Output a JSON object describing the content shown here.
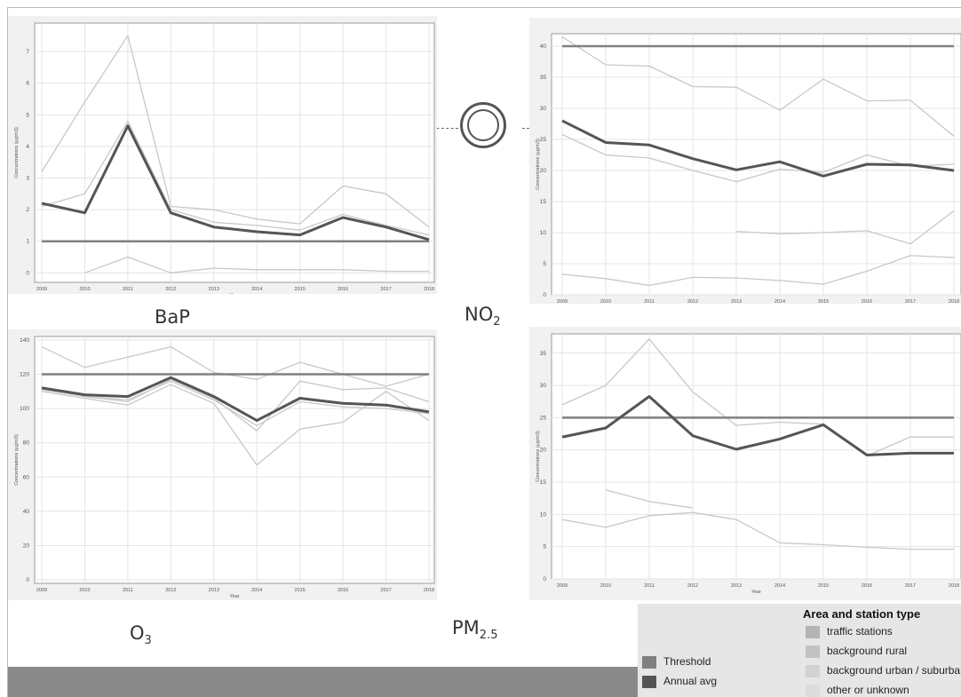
{
  "labels": {
    "bap": "BaP",
    "no2_base": "NO",
    "no2_sub": "2",
    "o3_base": "O",
    "o3_sub": "3",
    "pm25_base": "PM",
    "pm25_sub": "2.5"
  },
  "legend": {
    "title": "Area and station type",
    "types": [
      {
        "label": "traffic stations",
        "color": "#b4b4b4"
      },
      {
        "label": "background rural",
        "color": "#c2c2c2"
      },
      {
        "label": "background urban / suburban",
        "color": "#d2d2d2"
      },
      {
        "label": "other or unknown",
        "color": "#dcdcdc"
      }
    ],
    "lines": [
      {
        "label": "Threshold",
        "color": "#808080"
      },
      {
        "label": "Annual avg",
        "color": "#555555"
      }
    ]
  },
  "chart_data": [
    {
      "id": "bap",
      "type": "line",
      "x": [
        2009,
        2010,
        2011,
        2012,
        2013,
        2014,
        2015,
        2016,
        2017,
        2018
      ],
      "xlabel": "Year",
      "ylabel": "Concentrations (µg/m3)",
      "ylim": [
        -0.3,
        7.9
      ],
      "yticks": [
        0,
        1,
        2,
        3,
        4,
        5,
        6,
        7
      ],
      "series": [
        {
          "role": "station",
          "values": [
            3.2,
            5.4,
            7.5,
            2.1,
            2.0,
            1.7,
            1.55,
            2.75,
            2.5,
            1.45
          ]
        },
        {
          "role": "station",
          "values": [
            2.1,
            2.5,
            4.8,
            2.0,
            1.6,
            1.5,
            1.35,
            1.85,
            1.5,
            1.2
          ]
        },
        {
          "role": "station",
          "values": [
            null,
            0.0,
            0.5,
            0.0,
            0.15,
            0.1,
            0.1,
            0.1,
            0.05,
            0.05
          ]
        },
        {
          "role": "threshold",
          "values": [
            1,
            1,
            1,
            1,
            1,
            1,
            1,
            1,
            1,
            1
          ]
        },
        {
          "role": "average",
          "values": [
            2.2,
            1.9,
            4.65,
            1.9,
            1.45,
            1.3,
            1.2,
            1.75,
            1.45,
            1.05
          ]
        }
      ]
    },
    {
      "id": "no2",
      "type": "line",
      "x": [
        2009,
        2010,
        2011,
        2012,
        2013,
        2014,
        2015,
        2016,
        2017,
        2018
      ],
      "xlabel": "Year",
      "ylabel": "Concentrations (µg/m3)",
      "ylim": [
        0,
        42
      ],
      "yticks": [
        0,
        5,
        10,
        15,
        20,
        25,
        30,
        35,
        40
      ],
      "series": [
        {
          "role": "station",
          "values": [
            41.5,
            37.0,
            36.8,
            33.5,
            33.4,
            29.7,
            34.7,
            31.2,
            31.3,
            25.5
          ]
        },
        {
          "role": "station",
          "values": [
            25.8,
            22.5,
            22.0,
            20.0,
            18.2,
            20.2,
            19.7,
            22.5,
            20.7,
            21.0
          ]
        },
        {
          "role": "station",
          "values": [
            null,
            null,
            null,
            null,
            10.2,
            9.8,
            10.0,
            10.3,
            8.2,
            13.5
          ]
        },
        {
          "role": "station",
          "values": [
            3.3,
            2.6,
            1.5,
            2.8,
            2.7,
            2.3,
            1.7,
            3.8,
            6.3,
            6.0
          ]
        },
        {
          "role": "threshold",
          "values": [
            40,
            40,
            40,
            40,
            40,
            40,
            40,
            40,
            40,
            40
          ]
        },
        {
          "role": "average",
          "values": [
            28.0,
            24.5,
            24.1,
            21.9,
            20.1,
            21.4,
            19.1,
            21.0,
            20.9,
            20.0
          ]
        }
      ]
    },
    {
      "id": "o3",
      "type": "line",
      "x": [
        2009,
        2010,
        2011,
        2012,
        2013,
        2014,
        2015,
        2016,
        2017,
        2018
      ],
      "xlabel": "Year",
      "ylabel": "Concentrations (µg/m3)",
      "ylim": [
        -2,
        142
      ],
      "yticks": [
        0,
        20,
        40,
        60,
        80,
        100,
        120,
        140
      ],
      "series": [
        {
          "role": "station",
          "values": [
            136,
            124,
            130,
            136,
            121,
            117,
            127,
            120,
            113,
            120
          ]
        },
        {
          "role": "station",
          "values": [
            112,
            107,
            104,
            117,
            106,
            87,
            116,
            111,
            112,
            104
          ]
        },
        {
          "role": "station",
          "values": [
            110,
            106,
            102,
            114,
            103,
            67,
            88,
            92,
            110,
            93
          ]
        },
        {
          "role": "station",
          "values": [
            111,
            107,
            105,
            116,
            105,
            90,
            104,
            101,
            100,
            97
          ]
        },
        {
          "role": "threshold",
          "values": [
            120,
            120,
            120,
            120,
            120,
            120,
            120,
            120,
            120,
            120
          ]
        },
        {
          "role": "average",
          "values": [
            112,
            108,
            107,
            118,
            107,
            93,
            106,
            103,
            102,
            98
          ]
        }
      ]
    },
    {
      "id": "pm25",
      "type": "line",
      "x": [
        2009,
        2010,
        2011,
        2012,
        2013,
        2014,
        2015,
        2016,
        2017,
        2018
      ],
      "xlabel": "Year",
      "ylabel": "Concentrations (µg/m3)",
      "ylim": [
        0,
        38
      ],
      "yticks": [
        0,
        5,
        10,
        15,
        20,
        25,
        30,
        35
      ],
      "series": [
        {
          "role": "station",
          "values": [
            27.0,
            30.0,
            37.2,
            29.0,
            23.8,
            24.3,
            24.0,
            19.1,
            22.0,
            22.0
          ]
        },
        {
          "role": "station",
          "values": [
            null,
            13.8,
            12.0,
            11.0,
            null,
            null,
            null,
            null,
            null,
            null
          ]
        },
        {
          "role": "station",
          "values": [
            9.2,
            8.0,
            9.8,
            10.3,
            9.2,
            5.6,
            5.3,
            4.9,
            4.6,
            4.6
          ]
        },
        {
          "role": "threshold",
          "values": [
            25,
            25,
            25,
            25,
            25,
            25,
            25,
            25,
            25,
            25
          ]
        },
        {
          "role": "average",
          "values": [
            22.0,
            23.4,
            28.3,
            22.2,
            20.1,
            21.7,
            23.9,
            19.2,
            19.5,
            19.5
          ]
        }
      ]
    }
  ]
}
